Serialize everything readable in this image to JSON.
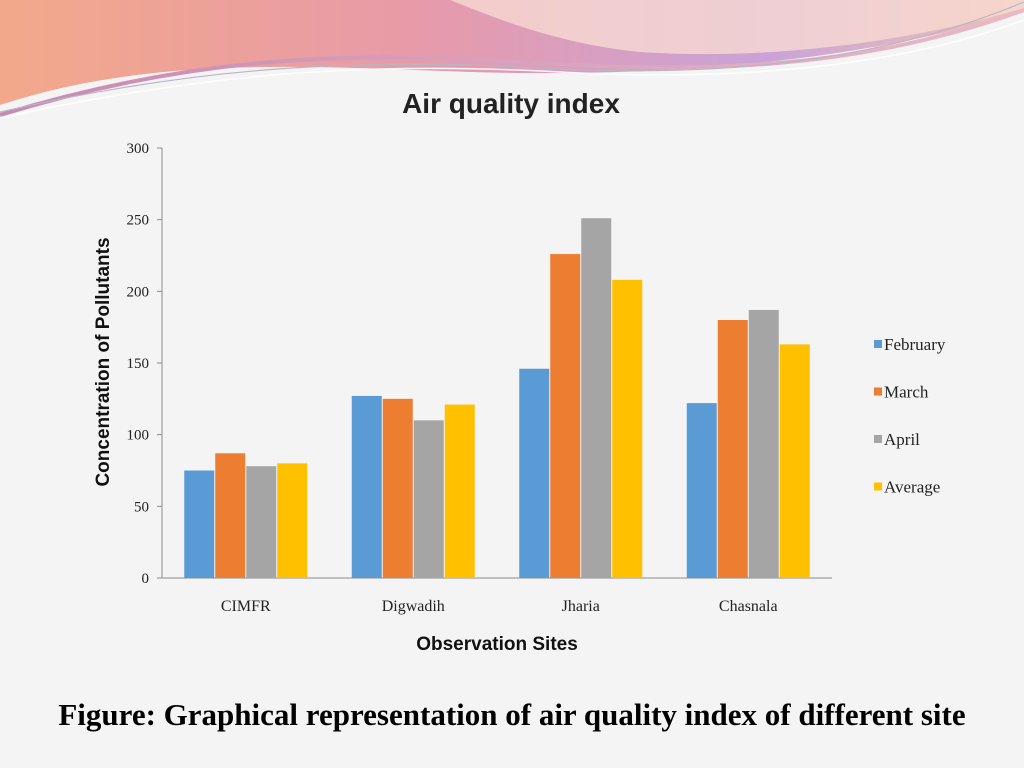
{
  "colors": {
    "february": "#5b9bd5",
    "march": "#ed7d31",
    "april": "#a5a5a5",
    "average": "#ffc000",
    "axis": "#8c8c8c"
  },
  "chart_data": {
    "type": "bar",
    "title": "Air quality index",
    "xlabel": "Observation Sites",
    "ylabel": "Concentration of Pollutants",
    "categories": [
      "CIMFR",
      "Digwadih",
      "Jharia",
      "Chasnala"
    ],
    "ylim": [
      0,
      300
    ],
    "yticks": [
      0,
      50,
      100,
      150,
      200,
      250,
      300
    ],
    "grid": false,
    "legend_position": "right",
    "series": [
      {
        "name": "February",
        "color": "#5b9bd5",
        "values": [
          75,
          127,
          146,
          122
        ]
      },
      {
        "name": "March",
        "color": "#ed7d31",
        "values": [
          87,
          125,
          226,
          180
        ]
      },
      {
        "name": "April",
        "color": "#a5a5a5",
        "values": [
          78,
          110,
          251,
          187
        ]
      },
      {
        "name": "Average",
        "color": "#ffc000",
        "values": [
          80,
          121,
          208,
          163
        ]
      }
    ]
  },
  "caption": "Figure: Graphical representation of air quality index of different site"
}
